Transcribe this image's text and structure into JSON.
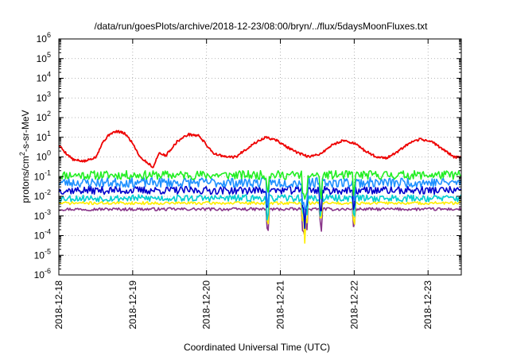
{
  "chart_data": {
    "type": "line",
    "title": "/data/run/goesPlots/archive/2018-12-23/08:00/bryn/../flux/5daysMoonFluxes.txt",
    "xlabel": "Coordinated Universal Time (UTC)",
    "ylabel_parts": {
      "pre": "protons/cm",
      "sup": "2",
      "post": "-s-sr-MeV"
    },
    "y_scale": "log",
    "ylim_exp": [
      -6,
      6
    ],
    "y_ticks": [
      {
        "exp": "-6"
      },
      {
        "exp": "-5"
      },
      {
        "exp": "-4"
      },
      {
        "exp": "-3"
      },
      {
        "exp": "-2"
      },
      {
        "exp": "-1"
      },
      {
        "exp": "0"
      },
      {
        "exp": "1"
      },
      {
        "exp": "2"
      },
      {
        "exp": "3"
      },
      {
        "exp": "4"
      },
      {
        "exp": "5"
      },
      {
        "exp": "6"
      }
    ],
    "x_range_days": [
      0,
      5.45
    ],
    "x_ticks": [
      "2018-12-18",
      "2018-12-19",
      "2018-12-20",
      "2018-12-21",
      "2018-12-22",
      "2018-12-23"
    ],
    "grid": true,
    "legend": "none",
    "series": [
      {
        "color": "#ee0000",
        "values": [
          [
            0.0,
            4
          ],
          [
            0.1,
            1.5
          ],
          [
            0.2,
            0.7
          ],
          [
            0.35,
            0.6
          ],
          [
            0.5,
            1.0
          ],
          [
            0.6,
            6
          ],
          [
            0.7,
            16
          ],
          [
            0.8,
            20
          ],
          [
            0.9,
            15
          ],
          [
            1.0,
            5
          ],
          [
            1.1,
            1.0
          ],
          [
            1.2,
            0.5
          ],
          [
            1.28,
            0.3
          ],
          [
            1.35,
            1.5
          ],
          [
            1.45,
            1.2
          ],
          [
            1.6,
            6
          ],
          [
            1.75,
            14
          ],
          [
            1.9,
            12
          ],
          [
            2.0,
            4
          ],
          [
            2.1,
            1.5
          ],
          [
            2.25,
            1.0
          ],
          [
            2.4,
            1.0
          ],
          [
            2.5,
            2
          ],
          [
            2.65,
            5
          ],
          [
            2.8,
            10
          ],
          [
            2.95,
            7
          ],
          [
            3.1,
            3
          ],
          [
            3.25,
            1.5
          ],
          [
            3.4,
            1.0
          ],
          [
            3.55,
            1.5
          ],
          [
            3.7,
            4
          ],
          [
            3.85,
            7
          ],
          [
            4.0,
            5
          ],
          [
            4.15,
            2
          ],
          [
            4.3,
            1.0
          ],
          [
            4.45,
            0.9
          ],
          [
            4.6,
            2
          ],
          [
            4.75,
            5
          ],
          [
            4.9,
            8
          ],
          [
            5.05,
            6
          ],
          [
            5.2,
            2.5
          ],
          [
            5.35,
            1.0
          ],
          [
            5.45,
            0.9
          ]
        ]
      },
      {
        "color": "#22ee22",
        "base": 0.12,
        "amp": 0.45,
        "seed": 11
      },
      {
        "color": "#1e90ff",
        "base": 0.05,
        "amp": 0.5,
        "seed": 23
      },
      {
        "color": "#0000cc",
        "base": 0.02,
        "amp": 0.4,
        "seed": 37
      },
      {
        "color": "#00ced1",
        "base": 0.008,
        "amp": 0.35,
        "seed": 53
      },
      {
        "color": "#ffee00",
        "base": 0.0045,
        "amp": 0.15,
        "seed": 71
      },
      {
        "color": "#883388",
        "base": 0.0022,
        "amp": 0.15,
        "seed": 97
      }
    ]
  }
}
